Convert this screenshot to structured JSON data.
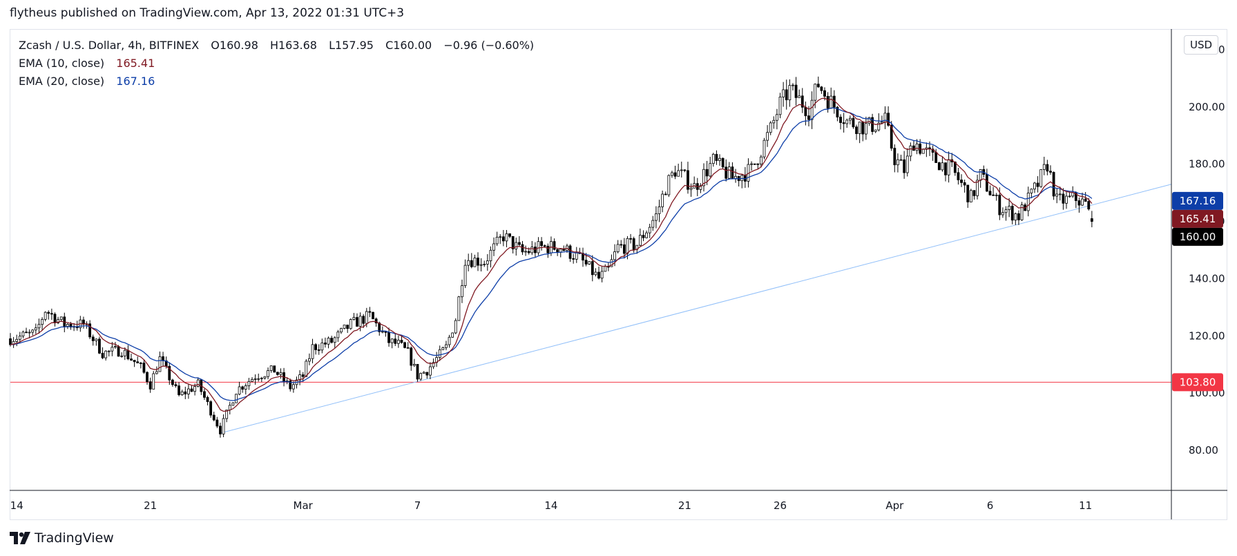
{
  "header": {
    "published_by": "flytheus published on TradingView.com, Apr 13, 2022 01:31 UTC+3"
  },
  "legend": {
    "symbol": "Zcash / U.S. Dollar, 4h, BITFINEX",
    "open_label": "O",
    "open": "160.98",
    "high_label": "H",
    "high": "163.68",
    "low_label": "L",
    "low": "157.95",
    "close_label": "C",
    "close": "160.00",
    "change": "−0.96 (−0.60%)",
    "ema10_label": "EMA (10, close)",
    "ema10_value": "165.41",
    "ema20_label": "EMA (20, close)",
    "ema20_value": "167.16"
  },
  "currency": "USD",
  "footer": {
    "brand": "TradingView"
  },
  "colors": {
    "ema10": "#801922",
    "ema20": "#0d3ea8",
    "trendline": "#90bff9",
    "support": "#f23645",
    "candle": "#000000",
    "close_tag": "#000000"
  },
  "chart_data": {
    "type": "candlestick",
    "symbol": "Zcash / U.S. Dollar",
    "interval": "4h",
    "exchange": "BITFINEX",
    "x_tick_labels": [
      "14",
      "21",
      "Mar",
      "7",
      "14",
      "21",
      "26",
      "Apr",
      "6",
      "11"
    ],
    "x_tick_dates": [
      "2022-02-14",
      "2022-02-21",
      "2022-03-01",
      "2022-03-07",
      "2022-03-14",
      "2022-03-21",
      "2022-03-26",
      "2022-04-01",
      "2022-04-06",
      "2022-04-11"
    ],
    "y_tick_labels": [
      "80.00",
      "100.00",
      "120.00",
      "140.00",
      "160.00",
      "180.00",
      "200.00",
      "220.00"
    ],
    "ylim": [
      66,
      227
    ],
    "x_range": [
      "2022-02-13T16:00",
      "2022-04-15T12:00"
    ],
    "price_path": [
      [
        "2022-02-13T16:00",
        119
      ],
      [
        "2022-02-15T00:00",
        121
      ],
      [
        "2022-02-15T12:00",
        129
      ],
      [
        "2022-02-16T12:00",
        124
      ],
      [
        "2022-02-17T12:00",
        124
      ],
      [
        "2022-02-18T12:00",
        114
      ],
      [
        "2022-02-19T12:00",
        115
      ],
      [
        "2022-02-20T12:00",
        109
      ],
      [
        "2022-02-21T00:00",
        103
      ],
      [
        "2022-02-21T12:00",
        112
      ],
      [
        "2022-02-22T12:00",
        99
      ],
      [
        "2022-02-23T12:00",
        103
      ],
      [
        "2022-02-24T16:00",
        87
      ],
      [
        "2022-02-25T12:00",
        101
      ],
      [
        "2022-02-26T12:00",
        106
      ],
      [
        "2022-02-27T12:00",
        108
      ],
      [
        "2022-02-28T08:00",
        102
      ],
      [
        "2022-03-01T00:00",
        106
      ],
      [
        "2022-03-01T12:00",
        116
      ],
      [
        "2022-03-02T12:00",
        118
      ],
      [
        "2022-03-03T12:00",
        124
      ],
      [
        "2022-03-04T12:00",
        127
      ],
      [
        "2022-03-05T12:00",
        118
      ],
      [
        "2022-03-06T00:00",
        117
      ],
      [
        "2022-03-06T12:00",
        114
      ],
      [
        "2022-03-07T00:00",
        106
      ],
      [
        "2022-03-07T12:00",
        108
      ],
      [
        "2022-03-08T12:00",
        116
      ],
      [
        "2022-03-09T00:00",
        126
      ],
      [
        "2022-03-09T12:00",
        147
      ],
      [
        "2022-03-10T12:00",
        146
      ],
      [
        "2022-03-11T12:00",
        155
      ],
      [
        "2022-03-12T12:00",
        149
      ],
      [
        "2022-03-13T12:00",
        151
      ],
      [
        "2022-03-14T12:00",
        151
      ],
      [
        "2022-03-15T12:00",
        147
      ],
      [
        "2022-03-16T12:00",
        140
      ],
      [
        "2022-03-17T00:00",
        143
      ],
      [
        "2022-03-17T12:00",
        151
      ],
      [
        "2022-03-18T12:00",
        152
      ],
      [
        "2022-03-19T12:00",
        162
      ],
      [
        "2022-03-20T00:00",
        172
      ],
      [
        "2022-03-20T12:00",
        178
      ],
      [
        "2022-03-21T12:00",
        172
      ],
      [
        "2022-03-22T12:00",
        181
      ],
      [
        "2022-03-23T12:00",
        175
      ],
      [
        "2022-03-24T12:00",
        178
      ],
      [
        "2022-03-25T12:00",
        192
      ],
      [
        "2022-03-26T00:00",
        201
      ],
      [
        "2022-03-26T12:00",
        206
      ],
      [
        "2022-03-27T12:00",
        199
      ],
      [
        "2022-03-28T00:00",
        208
      ],
      [
        "2022-03-28T12:00",
        203
      ],
      [
        "2022-03-29T12:00",
        195
      ],
      [
        "2022-03-30T12:00",
        193
      ],
      [
        "2022-03-31T12:00",
        195
      ],
      [
        "2022-04-01T00:00",
        182
      ],
      [
        "2022-04-01T12:00",
        178
      ],
      [
        "2022-04-02T00:00",
        188
      ],
      [
        "2022-04-03T00:00",
        182
      ],
      [
        "2022-04-04T00:00",
        178
      ],
      [
        "2022-04-05T00:00",
        168
      ],
      [
        "2022-04-05T12:00",
        176
      ],
      [
        "2022-04-06T12:00",
        165
      ],
      [
        "2022-04-07T12:00",
        162
      ],
      [
        "2022-04-08T12:00",
        173
      ],
      [
        "2022-04-09T00:00",
        180
      ],
      [
        "2022-04-09T12:00",
        167
      ],
      [
        "2022-04-10T12:00",
        168
      ],
      [
        "2022-04-11T00:00",
        166
      ],
      [
        "2022-04-11T08:00",
        160
      ]
    ],
    "last_candle": {
      "date": "2022-04-11T08:00",
      "open": 160.98,
      "high": 163.68,
      "low": 157.95,
      "close": 160.0
    },
    "series": [
      {
        "name": "EMA (10, close)",
        "last_value": 165.41
      },
      {
        "name": "EMA (20, close)",
        "last_value": 167.16
      }
    ],
    "trendline": {
      "from": [
        "2022-02-24T16:00",
        86
      ],
      "to": [
        "2022-04-15T12:00",
        173
      ]
    },
    "horizontal_lines": [
      {
        "value": 103.8
      }
    ],
    "price_tags": [
      {
        "value": 167.16,
        "label": "167.16"
      },
      {
        "value": 165.41,
        "label": "165.41"
      },
      {
        "value": 160.0,
        "label": "160.00"
      },
      {
        "value": 103.8,
        "label": "103.80"
      }
    ],
    "grid": false
  }
}
